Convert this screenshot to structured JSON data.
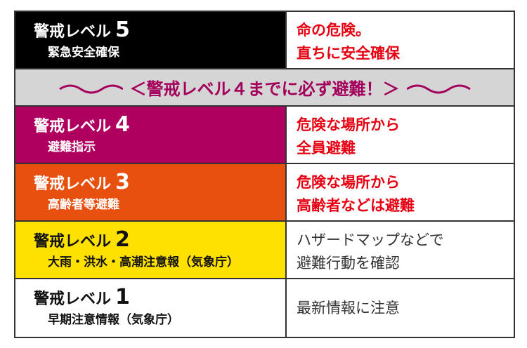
{
  "levels": [
    {
      "label": "警戒レベル",
      "num": "5",
      "sub": "緊急安全確保",
      "action": [
        "命の危険。",
        "直ちに安全確保"
      ],
      "bg": "#000000",
      "fg": "#ffffff",
      "action_color": "#e60012"
    },
    {
      "label": "警戒レベル",
      "num": "4",
      "sub": "避難指示",
      "action": [
        "危険な場所から",
        "全員避難"
      ],
      "bg": "#b0005f",
      "fg": "#ffffff",
      "action_color": "#e60012"
    },
    {
      "label": "警戒レベル",
      "num": "3",
      "sub": "高齢者等避難",
      "action": [
        "危険な場所から",
        "高齢者などは避難"
      ],
      "bg": "#e8500f",
      "fg": "#ffffff",
      "action_color": "#e60012"
    },
    {
      "label": "警戒レベル",
      "num": "2",
      "sub": "大雨・洪水・高潮注意報（気象庁）",
      "action": [
        "ハザードマップなどで",
        "避難行動を確認"
      ],
      "bg": "#ffe100",
      "fg": "#111111",
      "action_color": "#333333"
    },
    {
      "label": "警戒レベル",
      "num": "1",
      "sub": "早期注意情報（気象庁）",
      "action": [
        "最新情報に注意"
      ],
      "bg": "#ffffff",
      "fg": "#111111",
      "action_color": "#333333"
    }
  ],
  "banner": {
    "text": "＜警戒レベル４までに必ず避難！＞",
    "bg": "#d5d5d5",
    "color": "#a3005c"
  }
}
